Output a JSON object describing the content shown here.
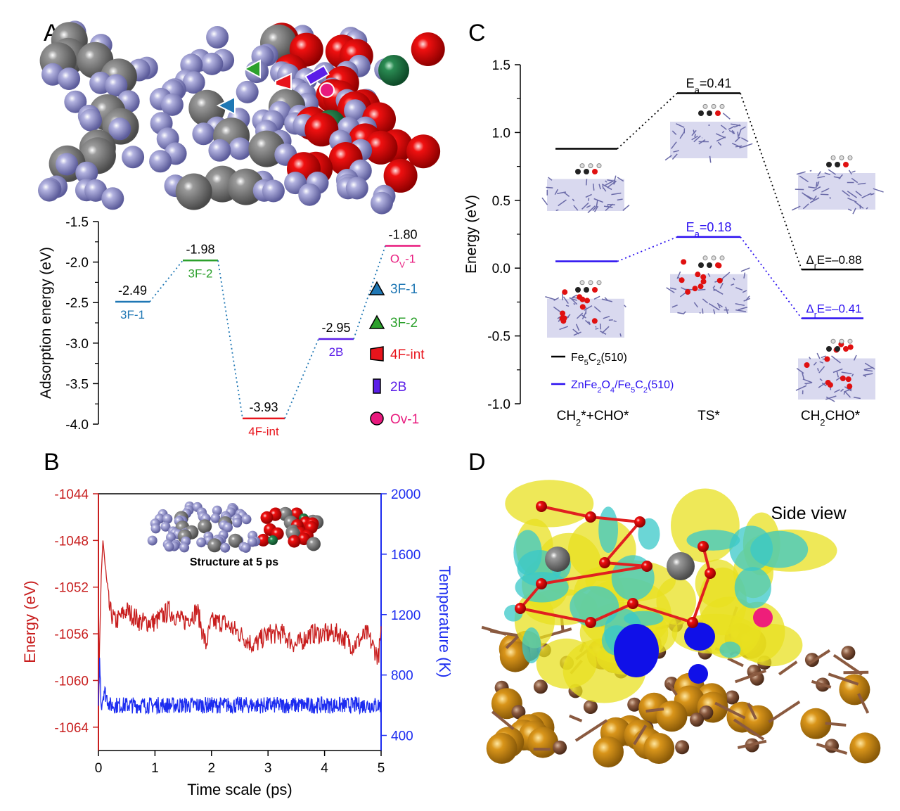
{
  "panels": {
    "A": {
      "letter": "A",
      "ylabel": "Adsorption energy (eV)",
      "yticks": [
        "-1.5",
        "-2.0",
        "-2.5",
        "-3.0",
        "-3.5",
        "-4.0"
      ],
      "levels": [
        {
          "site": "3F-1",
          "energy": -2.49,
          "value_label": "-2.49",
          "color": "#1f77b4"
        },
        {
          "site": "3F-2",
          "energy": -1.98,
          "value_label": "-1.98",
          "color": "#2ca02c"
        },
        {
          "site": "4F-int",
          "energy": -3.93,
          "value_label": "-3.93",
          "color": "#e8141c"
        },
        {
          "site": "2B",
          "energy": -2.95,
          "value_label": "-2.95",
          "color": "#5b1ee8"
        },
        {
          "site": "OV-1",
          "energy": -1.8,
          "value_label": "-1.80",
          "color": "#e8197d"
        }
      ],
      "ov_label": {
        "main": "O",
        "sub": "V",
        "rest": "-1"
      },
      "legend": [
        {
          "label": "3F-1",
          "shape": "triangle-icon",
          "color": "#1f77b4"
        },
        {
          "label": "3F-2",
          "shape": "triangle-icon",
          "color": "#2ca02c"
        },
        {
          "label": "4F-int",
          "shape": "trapezoid-icon",
          "color": "#e8141c"
        },
        {
          "label": "2B",
          "shape": "rectangle-icon",
          "color": "#5b1ee8"
        },
        {
          "label": "Ov-1",
          "shape": "circle-icon",
          "color": "#e8197d"
        }
      ]
    },
    "B": {
      "letter": "B",
      "xlabel": "Time scale (ps)",
      "ylabel_left": "Energy (eV)",
      "ylabel_right": "Temperature (K)",
      "xticks": [
        "0",
        "1",
        "2",
        "3",
        "4",
        "5"
      ],
      "yticks_left": [
        "-1044",
        "-1048",
        "-1052",
        "-1056",
        "-1060",
        "-1064"
      ],
      "yticks_right": [
        "2000",
        "1600",
        "1200",
        "800",
        "400"
      ],
      "inset_caption": "Structure at 5 ps",
      "left_color": "#c81e1e",
      "right_color": "#1c2cf0"
    },
    "C": {
      "letter": "C",
      "ylabel": "Energy (eV)",
      "yticks": [
        "1.5",
        "1.0",
        "0.5",
        "0.0",
        "-0.5",
        "-1.0"
      ],
      "categories": [
        "CH2*+CHO*",
        "TS*",
        "CH2CHO*"
      ],
      "category_labels": [
        {
          "pre": "CH",
          "sub": "2",
          "post": "*+CHO*"
        },
        {
          "pre": "TS*",
          "sub": "",
          "post": ""
        },
        {
          "pre": "CH",
          "sub": "2",
          "post": "CHO*"
        }
      ],
      "series": [
        {
          "name": "Fe5C2(510)",
          "values": [
            0.88,
            1.29,
            -0.01
          ],
          "color": "#000000",
          "ea": "0.41",
          "dre": "–0.88"
        },
        {
          "name": "ZnFe2O4/Fe5C2(510)",
          "values": [
            0.05,
            0.23,
            -0.37
          ],
          "color": "#2a0ff0",
          "ea": "0.18",
          "dre": "–0.41"
        }
      ],
      "legend_labels": [
        {
          "parts": [
            [
              "Fe",
              ""
            ],
            [
              "5",
              "sub"
            ],
            [
              "C",
              ""
            ],
            [
              "2",
              "sub"
            ],
            [
              "(510)",
              ""
            ]
          ]
        },
        {
          "parts": [
            [
              "ZnFe",
              ""
            ],
            [
              "2",
              "sub"
            ],
            [
              "O",
              ""
            ],
            [
              "4",
              "sub"
            ],
            [
              "/Fe",
              ""
            ],
            [
              "5",
              "sub"
            ],
            [
              "C",
              ""
            ],
            [
              "2",
              "sub"
            ],
            [
              "(510)",
              ""
            ]
          ]
        }
      ],
      "ea_prefix": "E",
      "ea_sub": "a",
      "dre_prefix": "Δ",
      "dre_sub": "r",
      "dre_mid": "E="
    },
    "D": {
      "letter": "D",
      "view_label": "Side view"
    }
  },
  "chart_data": [
    {
      "type": "line",
      "panel": "A",
      "title": "",
      "categories": [
        "3F-1",
        "3F-2",
        "4F-int",
        "2B",
        "OV-1"
      ],
      "values": [
        -2.49,
        -1.98,
        -3.93,
        -2.95,
        -1.8
      ],
      "ylabel": "Adsorption energy (eV)",
      "ylim": [
        -4.0,
        -1.5
      ]
    },
    {
      "type": "line",
      "panel": "B",
      "title": "",
      "xlabel": "Time scale (ps)",
      "xlim": [
        0,
        5
      ],
      "series": [
        {
          "name": "Energy (eV)",
          "axis": "left",
          "ylim": [
            -1066,
            -1044
          ],
          "x": [
            0,
            0.02,
            0.05,
            0.08,
            0.1,
            0.15,
            0.2,
            0.3,
            0.5,
            0.75,
            1.0,
            1.25,
            1.5,
            1.75,
            1.9,
            2.0,
            2.2,
            2.5,
            2.75,
            3.0,
            3.25,
            3.5,
            3.75,
            4.0,
            4.25,
            4.5,
            4.75,
            4.95,
            5.0
          ],
          "y": [
            -1063,
            -1057,
            -1051,
            -1048,
            -1049,
            -1052,
            -1054,
            -1055,
            -1054,
            -1055,
            -1055,
            -1054,
            -1055,
            -1054,
            -1057,
            -1055,
            -1055,
            -1056,
            -1057,
            -1056,
            -1056,
            -1057,
            -1056,
            -1056,
            -1056,
            -1057,
            -1056,
            -1058,
            -1056
          ]
        },
        {
          "name": "Temperature (K)",
          "axis": "right",
          "ylim": [
            300,
            2000
          ],
          "x": [
            0,
            0.02,
            0.05,
            0.1,
            0.2,
            1.0,
            2.0,
            3.0,
            4.0,
            5.0
          ],
          "y": [
            550,
            900,
            600,
            700,
            600,
            600,
            600,
            600,
            600,
            600
          ]
        }
      ]
    },
    {
      "type": "line",
      "panel": "C",
      "title": "",
      "categories": [
        "CH2*+CHO*",
        "TS*",
        "CH2CHO*"
      ],
      "series": [
        {
          "name": "Fe5C2(510)",
          "values": [
            0.88,
            1.29,
            -0.01
          ]
        },
        {
          "name": "ZnFe2O4/Fe5C2(510)",
          "values": [
            0.05,
            0.23,
            -0.37
          ]
        }
      ],
      "ylabel": "Energy (eV)",
      "ylim": [
        -1.0,
        1.5
      ]
    }
  ]
}
